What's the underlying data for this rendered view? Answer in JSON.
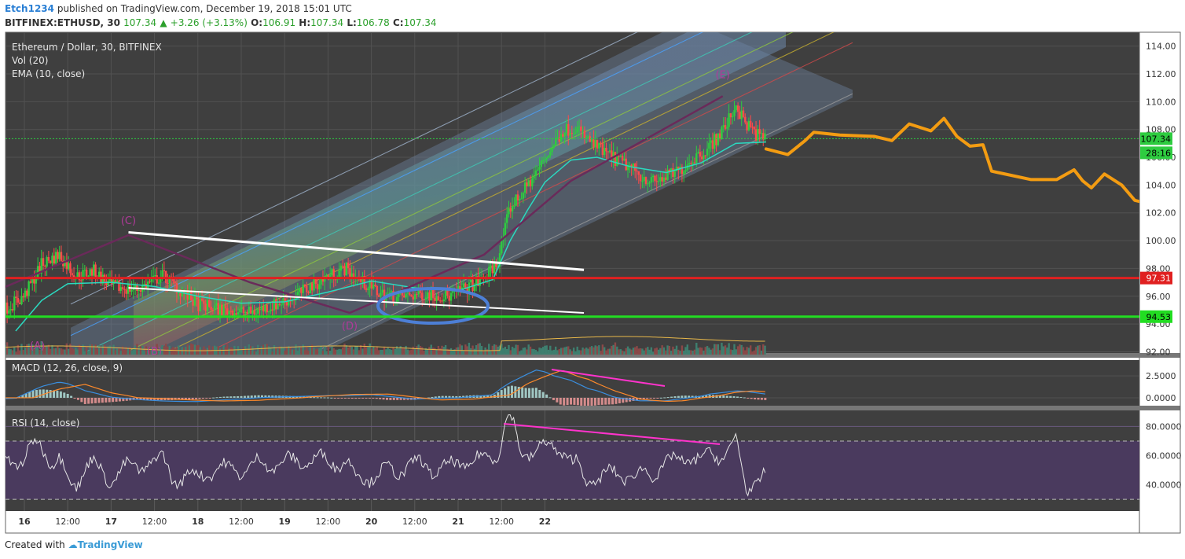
{
  "header": {
    "author": "Etch1234",
    "published": "published on TradingView.com, December 19, 2018 15:01 UTC",
    "symbol": "BITFINEX:ETHUSD, 30",
    "last": "107.34",
    "change": "+3.26 (+3.13%)",
    "o_label": "O:",
    "o": "106.91",
    "h_label": "H:",
    "h": "107.34",
    "l_label": "L:",
    "l": "106.78",
    "c_label": "C:",
    "c": "107.34"
  },
  "panes": {
    "price_title": "Ethereum / Dollar, 30, BITFINEX",
    "vol_title": "Vol (20)",
    "ema_title": "EMA (10, close)",
    "macd_title": "MACD (12, 26, close, 9)",
    "rsi_title": "RSI (14, close)"
  },
  "footer": {
    "created": "Created with",
    "brand": "TradingView"
  },
  "colors": {
    "background": "#3f3f3f",
    "rsi_band": "#4a3a5e",
    "candle_up": "#2ecc40",
    "candle_down": "#ff4a4a",
    "ema": "#2bd9c0",
    "resistance": "#e02020",
    "support": "#22dd22",
    "forecast": "#f39c12",
    "divergence": "#ff33cc",
    "ellipse": "#4d7fd6",
    "last_price": "#2ecc40"
  },
  "chart_data": [
    {
      "type": "candlestick",
      "title": "Ethereum / Dollar, 30, BITFINEX",
      "y_ticks": [
        "114.00",
        "112.00",
        "110.00",
        "108.00",
        "106.00",
        "104.00",
        "102.00",
        "100.00",
        "98.00",
        "96.00",
        "94.00",
        "92.00"
      ],
      "ylim": [
        91.8,
        115.0
      ],
      "x_ticks": [
        "16",
        "12:00",
        "17",
        "12:00",
        "18",
        "12:00",
        "19",
        "12:00",
        "20",
        "12:00",
        "21",
        "12:00",
        "22"
      ],
      "last_price": 107.34,
      "last_price_label": "107.34",
      "countdown_label": "28:16",
      "resistance_level": 97.31,
      "resistance_label": "97.31",
      "support_level": 94.53,
      "support_label": "94.53",
      "wave_labels": [
        "(A)",
        "(B)",
        "(C)",
        "(D)",
        "(E)"
      ],
      "close_path": [
        [
          -7.0,
          92.3
        ],
        [
          -5.0,
          92.5
        ],
        [
          -3.5,
          92.8
        ],
        [
          -2.0,
          92.6
        ],
        [
          -1.0,
          93.8
        ],
        [
          -0.5,
          94.0
        ],
        [
          -0.2,
          95.2
        ],
        [
          0.0,
          96.0
        ],
        [
          0.2,
          98.3
        ],
        [
          0.4,
          99.0
        ],
        [
          0.6,
          97.4
        ],
        [
          0.8,
          97.8
        ],
        [
          1.0,
          96.7
        ],
        [
          1.3,
          96.5
        ],
        [
          1.6,
          97.5
        ],
        [
          1.8,
          96.4
        ],
        [
          2.0,
          95.4
        ],
        [
          2.3,
          95.0
        ],
        [
          2.6,
          94.8
        ],
        [
          2.9,
          95.4
        ],
        [
          3.1,
          95.9
        ],
        [
          3.3,
          96.7
        ],
        [
          3.5,
          97.4
        ],
        [
          3.7,
          98.0
        ],
        [
          3.9,
          97.0
        ],
        [
          4.1,
          96.2
        ],
        [
          4.3,
          95.9
        ],
        [
          4.6,
          96.2
        ],
        [
          4.9,
          96.0
        ],
        [
          5.1,
          96.6
        ],
        [
          5.3,
          97.3
        ],
        [
          5.45,
          98.4
        ],
        [
          5.6,
          102.4
        ],
        [
          5.75,
          103.5
        ],
        [
          5.9,
          104.9
        ],
        [
          6.05,
          106.4
        ],
        [
          6.2,
          107.9
        ],
        [
          6.35,
          108.2
        ],
        [
          6.5,
          107.2
        ],
        [
          6.65,
          106.5
        ],
        [
          6.8,
          105.9
        ],
        [
          6.95,
          105.4
        ],
        [
          7.1,
          104.7
        ],
        [
          7.25,
          104.2
        ],
        [
          7.4,
          104.6
        ],
        [
          7.55,
          105.0
        ],
        [
          7.7,
          105.9
        ],
        [
          7.85,
          106.5
        ],
        [
          8.0,
          107.5
        ],
        [
          8.1,
          108.4
        ],
        [
          8.2,
          109.8
        ],
        [
          8.3,
          108.5
        ],
        [
          8.45,
          107.6
        ],
        [
          8.55,
          107.34
        ]
      ],
      "ema_path": [
        [
          -0.1,
          93.5
        ],
        [
          0.2,
          95.7
        ],
        [
          0.5,
          96.9
        ],
        [
          1.0,
          97.0
        ],
        [
          1.5,
          96.7
        ],
        [
          2.0,
          96.0
        ],
        [
          2.5,
          95.5
        ],
        [
          3.0,
          95.6
        ],
        [
          3.5,
          96.3
        ],
        [
          4.0,
          97.1
        ],
        [
          4.5,
          96.6
        ],
        [
          5.0,
          96.4
        ],
        [
          5.4,
          97.2
        ],
        [
          5.6,
          100.0
        ],
        [
          5.8,
          102.2
        ],
        [
          6.0,
          104.2
        ],
        [
          6.3,
          105.8
        ],
        [
          6.6,
          106.0
        ],
        [
          7.0,
          105.3
        ],
        [
          7.4,
          104.9
        ],
        [
          7.8,
          105.6
        ],
        [
          8.2,
          107.0
        ],
        [
          8.55,
          107.1
        ]
      ],
      "forecast_path": [
        [
          8.55,
          106.6
        ],
        [
          8.8,
          106.2
        ],
        [
          9.0,
          107.2
        ],
        [
          9.1,
          107.8
        ],
        [
          9.4,
          107.6
        ],
        [
          9.8,
          107.5
        ],
        [
          10.0,
          107.2
        ],
        [
          10.2,
          108.4
        ],
        [
          10.45,
          107.9
        ],
        [
          10.6,
          108.8
        ],
        [
          10.75,
          107.5
        ],
        [
          10.9,
          106.8
        ],
        [
          11.05,
          106.9
        ],
        [
          11.15,
          105.0
        ],
        [
          11.3,
          104.8
        ],
        [
          11.6,
          104.4
        ],
        [
          11.9,
          104.4
        ],
        [
          12.1,
          105.1
        ],
        [
          12.2,
          104.3
        ],
        [
          12.3,
          103.8
        ],
        [
          12.45,
          104.8
        ],
        [
          12.65,
          104.0
        ],
        [
          12.8,
          102.9
        ],
        [
          13.0,
          102.6
        ],
        [
          13.15,
          102.6
        ],
        [
          13.3,
          101.6
        ],
        [
          13.55,
          101.5
        ],
        [
          13.7,
          100.8
        ],
        [
          13.72,
          97.6
        ],
        [
          13.85,
          97.9
        ],
        [
          14.1,
          98.3
        ]
      ],
      "pattern_lines": [
        [
          [
            -1.5,
            91.8
          ],
          [
            -0.4,
            96.2
          ],
          [
            1.2,
            100.4
          ]
        ],
        [
          [
            1.2,
            100.4
          ],
          [
            2.6,
            97.0
          ],
          [
            3.75,
            94.8
          ]
        ],
        [
          [
            3.75,
            94.8
          ],
          [
            5.3,
            99.0
          ],
          [
            6.3,
            104.3
          ],
          [
            8.05,
            110.4
          ]
        ]
      ],
      "triangle_upper": [
        [
          1.2,
          100.6
        ],
        [
          6.45,
          97.9
        ]
      ],
      "triangle_lower": [
        [
          1.2,
          96.6
        ],
        [
          6.45,
          94.8
        ]
      ]
    },
    {
      "type": "line",
      "title": "MACD (12, 26, close, 9)",
      "y_ticks": [
        "2.5000",
        "0.0000"
      ],
      "ylim": [
        -0.9,
        4.3
      ]
    },
    {
      "type": "line",
      "title": "RSI (14, close)",
      "y_ticks": [
        "80.0000",
        "60.0000",
        "40.0000"
      ],
      "ylim": [
        22,
        91
      ],
      "upper_band": 70,
      "lower_band": 30
    }
  ]
}
